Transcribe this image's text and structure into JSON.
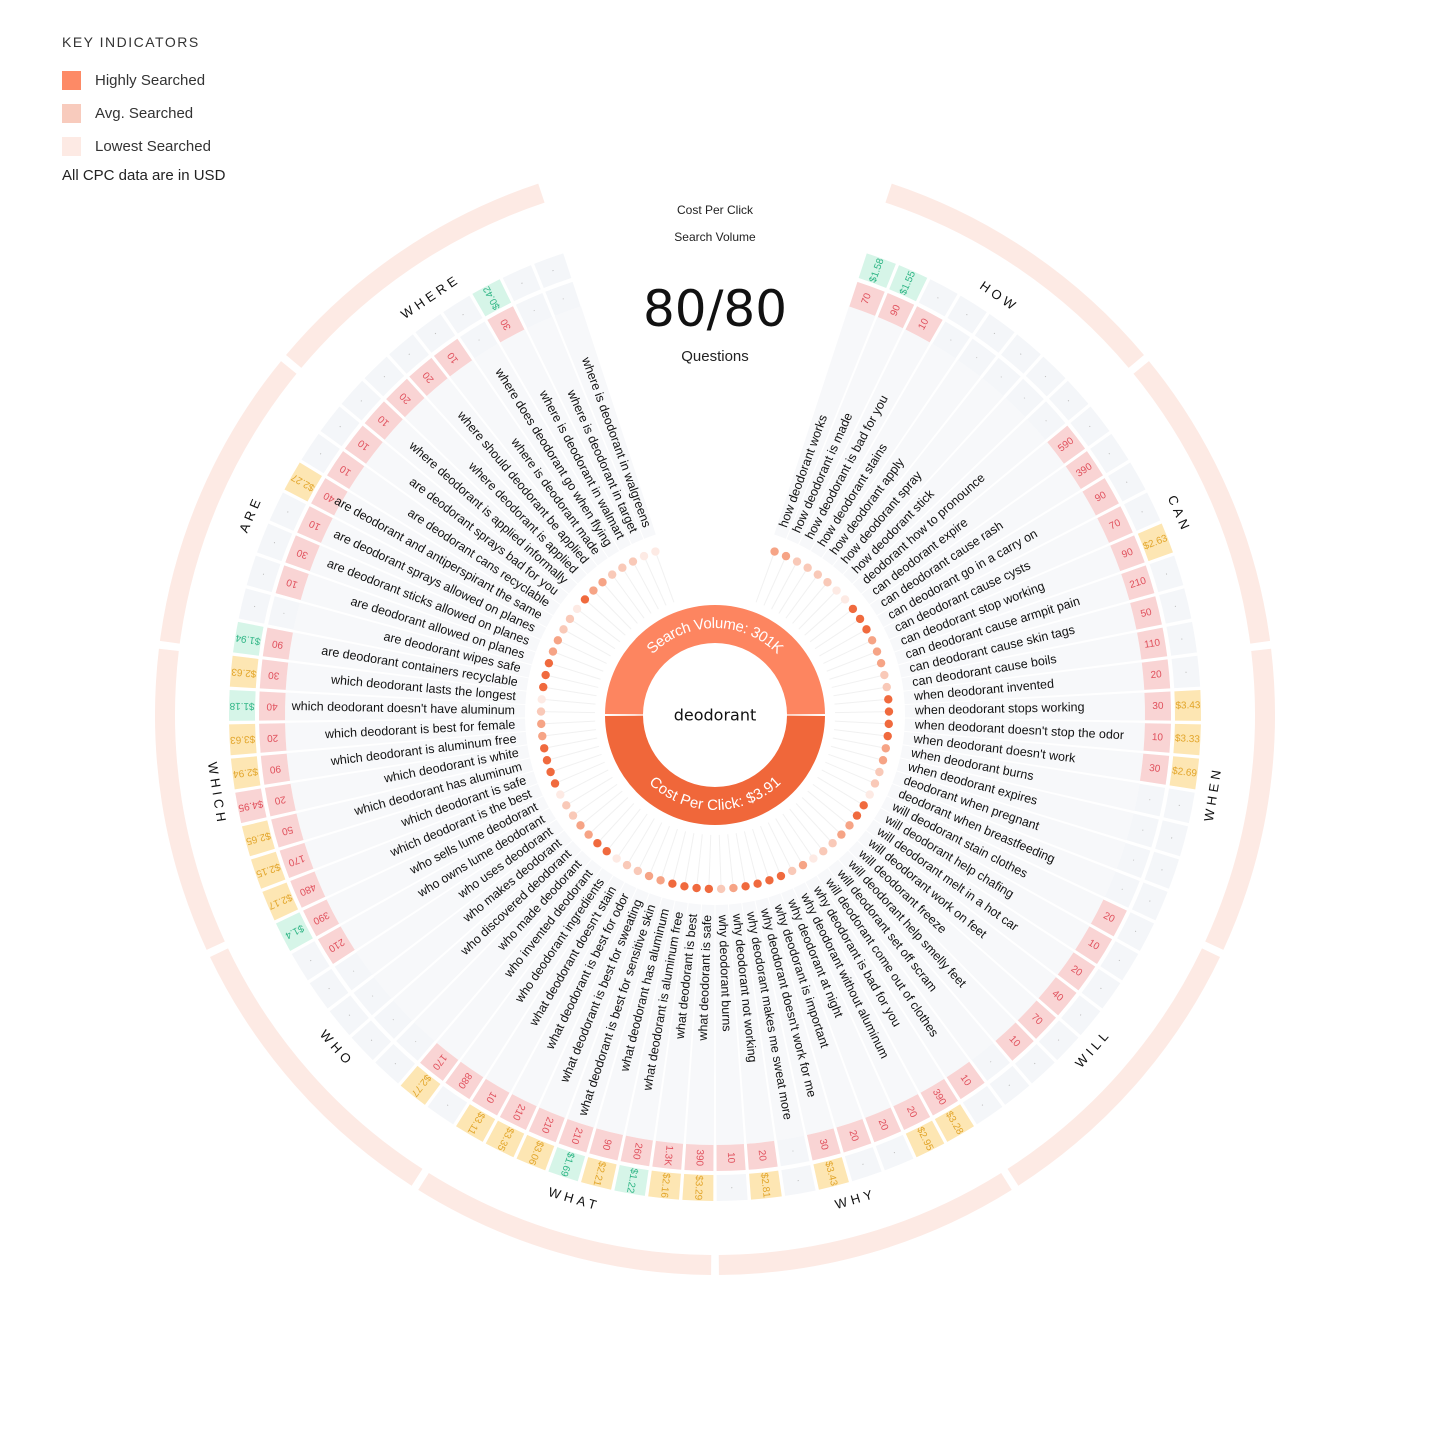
{
  "legend": {
    "title": "KEY INDICATORS",
    "items": [
      {
        "label": "Highly Searched",
        "color": "#fd8a66"
      },
      {
        "label": "Avg. Searched",
        "color": "#f8cbbd"
      },
      {
        "label": "Lowest Searched",
        "color": "#fdeae4"
      }
    ],
    "note": "All CPC data are in USD"
  },
  "ring_labels": {
    "cpc": "Cost Per Click",
    "volume": "Search Volume"
  },
  "summary": {
    "count": "80/80",
    "count_label": "Questions"
  },
  "center": {
    "keyword": "deodorant",
    "search_volume_label": "Search Volume: 301K",
    "cpc_label": "Cost Per Click: $3.91",
    "top_color": "#fd8560",
    "bottom_color": "#f0673a"
  },
  "colors": {
    "volume_bg": "#f9d4d4",
    "volume_text": "#e0505c",
    "cpc_high_bg": "#fde6b3",
    "cpc_high_text": "#e2a52a",
    "cpc_low_bg": "#d6f5e8",
    "cpc_low_text": "#2fb585",
    "cpc_top_bg": "#f9d4d4",
    "cpc_top_text": "#e0505c",
    "empty_bg": "#f4f6f9",
    "category_ring": "#fdeae4"
  },
  "chart_data": {
    "type": "radial-bar",
    "title": "deodorant",
    "total_search_volume": "301K",
    "total_cpc": "$3.91",
    "categories": [
      "HOW",
      "CAN",
      "WHEN",
      "WILL",
      "WHY",
      "WHAT",
      "WHO",
      "WHICH",
      "ARE",
      "WHERE"
    ],
    "questions": [
      {
        "cat": "HOW",
        "q": "how deodorant works",
        "vol": "70",
        "cpc": "$1.58",
        "lvl": 2
      },
      {
        "cat": "HOW",
        "q": "how deodorant is made",
        "vol": "90",
        "cpc": "$1.55",
        "lvl": 2
      },
      {
        "cat": "HOW",
        "q": "how deodorant is bad for you",
        "vol": "10",
        "cpc": "",
        "lvl": 1
      },
      {
        "cat": "HOW",
        "q": "how deodorant stains",
        "vol": "",
        "cpc": "",
        "lvl": 1
      },
      {
        "cat": "HOW",
        "q": "how deodorant apply",
        "vol": "",
        "cpc": "",
        "lvl": 1
      },
      {
        "cat": "HOW",
        "q": "how deodorant spray",
        "vol": "",
        "cpc": "",
        "lvl": 1
      },
      {
        "cat": "HOW",
        "q": "how deodorant stick",
        "vol": "",
        "cpc": "",
        "lvl": 0
      },
      {
        "cat": "HOW",
        "q": "deodorant how to pronounce",
        "vol": "",
        "cpc": "",
        "lvl": 0
      },
      {
        "cat": "CAN",
        "q": "can deodorant expire",
        "vol": "590",
        "cpc": "",
        "lvl": 3
      },
      {
        "cat": "CAN",
        "q": "can deodorant cause rash",
        "vol": "390",
        "cpc": "",
        "lvl": 3
      },
      {
        "cat": "CAN",
        "q": "can deodorant go in a carry on",
        "vol": "90",
        "cpc": "",
        "lvl": 3
      },
      {
        "cat": "CAN",
        "q": "can deodorant cause cysts",
        "vol": "70",
        "cpc": "",
        "lvl": 2
      },
      {
        "cat": "CAN",
        "q": "can deodorant stop working",
        "vol": "90",
        "cpc": "$2.63",
        "lvl": 2
      },
      {
        "cat": "CAN",
        "q": "can deodorant cause armpit pain",
        "vol": "210",
        "cpc": "",
        "lvl": 2
      },
      {
        "cat": "CAN",
        "q": "can deodorant cause skin tags",
        "vol": "50",
        "cpc": "",
        "lvl": 1
      },
      {
        "cat": "CAN",
        "q": "can deodorant cause boils",
        "vol": "110",
        "cpc": "",
        "lvl": 1
      },
      {
        "cat": "WHEN",
        "q": "when deodorant invented",
        "vol": "20",
        "cpc": "",
        "lvl": 3
      },
      {
        "cat": "WHEN",
        "q": "when deodorant stops working",
        "vol": "30",
        "cpc": "$3.43",
        "lvl": 3
      },
      {
        "cat": "WHEN",
        "q": "when deodorant doesn't stop the odor",
        "vol": "10",
        "cpc": "$3.33",
        "lvl": 3
      },
      {
        "cat": "WHEN",
        "q": "when deodorant doesn't work",
        "vol": "30",
        "cpc": "$2.69",
        "lvl": 3
      },
      {
        "cat": "WHEN",
        "q": "when deodorant burns",
        "vol": "",
        "cpc": "",
        "lvl": 2
      },
      {
        "cat": "WHEN",
        "q": "when deodorant expires",
        "vol": "",
        "cpc": "",
        "lvl": 2
      },
      {
        "cat": "WHEN",
        "q": "deodorant when pregnant",
        "vol": "",
        "cpc": "",
        "lvl": 1
      },
      {
        "cat": "WHEN",
        "q": "deodorant when breastfeeding",
        "vol": "",
        "cpc": "",
        "lvl": 1
      },
      {
        "cat": "WILL",
        "q": "will deodorant stain clothes",
        "vol": "20",
        "cpc": "",
        "lvl": 0
      },
      {
        "cat": "WILL",
        "q": "will deodorant help chafing",
        "vol": "10",
        "cpc": "",
        "lvl": 3
      },
      {
        "cat": "WILL",
        "q": "will deodorant melt in a hot car",
        "vol": "20",
        "cpc": "",
        "lvl": 3
      },
      {
        "cat": "WILL",
        "q": "will deodorant work on feet",
        "vol": "40",
        "cpc": "",
        "lvl": 2
      },
      {
        "cat": "WILL",
        "q": "will deodorant freeze",
        "vol": "70",
        "cpc": "",
        "lvl": 2
      },
      {
        "cat": "WILL",
        "q": "will deodorant help smelly feet",
        "vol": "10",
        "cpc": "",
        "lvl": 1
      },
      {
        "cat": "WILL",
        "q": "will deodorant set off scram",
        "vol": "",
        "cpc": "",
        "lvl": 1
      },
      {
        "cat": "WILL",
        "q": "will deodorant come out of clothes",
        "vol": "10",
        "cpc": "",
        "lvl": 0
      },
      {
        "cat": "WHY",
        "q": "why deodorant is bad for you",
        "vol": "390",
        "cpc": "$3.28",
        "lvl": 2
      },
      {
        "cat": "WHY",
        "q": "why deodorant without aluminum",
        "vol": "20",
        "cpc": "$2.95",
        "lvl": 1
      },
      {
        "cat": "WHY",
        "q": "why deodorant at night",
        "vol": "20",
        "cpc": "",
        "lvl": 3
      },
      {
        "cat": "WHY",
        "q": "why deodorant is important",
        "vol": "20",
        "cpc": "",
        "lvl": 3
      },
      {
        "cat": "WHY",
        "q": "why deodorant doesn't work for me",
        "vol": "30",
        "cpc": "$3.43",
        "lvl": 3
      },
      {
        "cat": "WHY",
        "q": "why deodorant makes me sweat more",
        "vol": "",
        "cpc": "",
        "lvl": 3
      },
      {
        "cat": "WHY",
        "q": "why deodorant not working",
        "vol": "20",
        "cpc": "$2.81",
        "lvl": 2
      },
      {
        "cat": "WHY",
        "q": "why deodorant burns",
        "vol": "10",
        "cpc": "",
        "lvl": 1
      },
      {
        "cat": "WHAT",
        "q": "what deodorant is safe",
        "vol": "390",
        "cpc": "$3.29",
        "lvl": 3
      },
      {
        "cat": "WHAT",
        "q": "what deodorant is best",
        "vol": "1.3K",
        "cpc": "$2.16",
        "lvl": 3
      },
      {
        "cat": "WHAT",
        "q": "what deodorant is aluminum free",
        "vol": "260",
        "cpc": "$1.22",
        "lvl": 3
      },
      {
        "cat": "WHAT",
        "q": "what deodorant has aluminum",
        "vol": "90",
        "cpc": "$2.21",
        "lvl": 3
      },
      {
        "cat": "WHAT",
        "q": "what deodorant is best for sensitive skin",
        "vol": "210",
        "cpc": "$1.69",
        "lvl": 2
      },
      {
        "cat": "WHAT",
        "q": "what deodorant is best for sweating",
        "vol": "210",
        "cpc": "$3.06",
        "lvl": 2
      },
      {
        "cat": "WHAT",
        "q": "what deodorant is best for odor",
        "vol": "210",
        "cpc": "$3.35",
        "lvl": 1
      },
      {
        "cat": "WHAT",
        "q": "what deodorant doesn't stain",
        "vol": "10",
        "cpc": "$3.11",
        "lvl": 1
      },
      {
        "cat": "WHO",
        "q": "who deodorant ingredients",
        "vol": "880",
        "cpc": "",
        "lvl": 0
      },
      {
        "cat": "WHO",
        "q": "who invented deodorant",
        "vol": "170",
        "cpc": "$2.77",
        "lvl": 3
      },
      {
        "cat": "WHO",
        "q": "who made deodorant",
        "vol": "",
        "cpc": "",
        "lvl": 3
      },
      {
        "cat": "WHO",
        "q": "who discovered deodorant",
        "vol": "",
        "cpc": "",
        "lvl": 2
      },
      {
        "cat": "WHO",
        "q": "who makes deodorant",
        "vol": "",
        "cpc": "",
        "lvl": 2
      },
      {
        "cat": "WHO",
        "q": "who uses deodorant",
        "vol": "",
        "cpc": "",
        "lvl": 1
      },
      {
        "cat": "WHO",
        "q": "who owns lume deodorant",
        "vol": "210",
        "cpc": "",
        "lvl": 1
      },
      {
        "cat": "WHO",
        "q": "who sells lume deodorant",
        "vol": "390",
        "cpc": "$1.4",
        "lvl": 0
      },
      {
        "cat": "WHICH",
        "q": "which deodorant is the best",
        "vol": "480",
        "cpc": "$2.17",
        "lvl": 3
      },
      {
        "cat": "WHICH",
        "q": "which deodorant is safe",
        "vol": "170",
        "cpc": "$2.15",
        "lvl": 3
      },
      {
        "cat": "WHICH",
        "q": "which deodorant has aluminum",
        "vol": "50",
        "cpc": "$2.65",
        "lvl": 3
      },
      {
        "cat": "WHICH",
        "q": "which deodorant is white",
        "vol": "20",
        "cpc": "$4.95",
        "lvl": 3
      },
      {
        "cat": "WHICH",
        "q": "which deodorant is aluminum free",
        "vol": "90",
        "cpc": "$2.94",
        "lvl": 2
      },
      {
        "cat": "WHICH",
        "q": "which deodorant is best for female",
        "vol": "20",
        "cpc": "$3.63",
        "lvl": 2
      },
      {
        "cat": "WHICH",
        "q": "which deodorant doesn't have aluminum",
        "vol": "40",
        "cpc": "$1.18",
        "lvl": 1
      },
      {
        "cat": "WHICH",
        "q": "which deodorant lasts the longest",
        "vol": "30",
        "cpc": "$2.63",
        "lvl": 0
      },
      {
        "cat": "ARE",
        "q": "are deodorant containers recyclable",
        "vol": "90",
        "cpc": "$1.94",
        "lvl": 3
      },
      {
        "cat": "ARE",
        "q": "are deodorant wipes safe",
        "vol": "",
        "cpc": "",
        "lvl": 3
      },
      {
        "cat": "ARE",
        "q": "are deodorant allowed on planes",
        "vol": "10",
        "cpc": "",
        "lvl": 3
      },
      {
        "cat": "ARE",
        "q": "are deodorant sticks allowed on planes",
        "vol": "30",
        "cpc": "",
        "lvl": 2
      },
      {
        "cat": "ARE",
        "q": "are deodorant sprays allowed on planes",
        "vol": "10",
        "cpc": "",
        "lvl": 2
      },
      {
        "cat": "ARE",
        "q": "are deodorant and antiperspirant the same",
        "vol": "40",
        "cpc": "$2.27",
        "lvl": 1
      },
      {
        "cat": "ARE",
        "q": "are deodorant cans recyclable",
        "vol": "10",
        "cpc": "",
        "lvl": 1
      },
      {
        "cat": "ARE",
        "q": "are deodorant sprays bad for you",
        "vol": "10",
        "cpc": "",
        "lvl": 0
      },
      {
        "cat": "WHERE",
        "q": "where deodorant is applied informally",
        "vol": "10",
        "cpc": "",
        "lvl": 3
      },
      {
        "cat": "WHERE",
        "q": "where deodorant is applied",
        "vol": "20",
        "cpc": "",
        "lvl": 2
      },
      {
        "cat": "WHERE",
        "q": "where should deodorant be applied",
        "vol": "20",
        "cpc": "",
        "lvl": 2
      },
      {
        "cat": "WHERE",
        "q": "where is deodorant made",
        "vol": "10",
        "cpc": "",
        "lvl": 1
      },
      {
        "cat": "WHERE",
        "q": "where does deodorant go when flying",
        "vol": "",
        "cpc": "",
        "lvl": 1
      },
      {
        "cat": "WHERE",
        "q": "where is deodorant in walmart",
        "vol": "30",
        "cpc": "$0.42",
        "lvl": 1
      },
      {
        "cat": "WHERE",
        "q": "where is deodorant in target",
        "vol": "",
        "cpc": "",
        "lvl": 0
      },
      {
        "cat": "WHERE",
        "q": "where is deodorant in walgreens",
        "vol": "",
        "cpc": "",
        "lvl": 0
      }
    ]
  }
}
